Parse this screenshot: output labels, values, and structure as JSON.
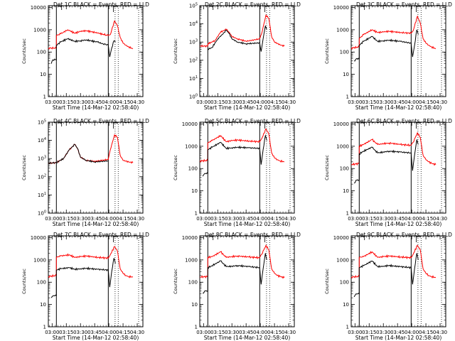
{
  "figure": {
    "xlabel": "Start Time (14-Mar-12 02:58:40)",
    "ylabel": "Counts/sec",
    "x_ticks": [
      "03:00",
      "03:15",
      "03:30",
      "03:45",
      "04:00",
      "04:15",
      "04:30"
    ]
  },
  "chart_data": [
    {
      "type": "line",
      "title": "Det 1C BLACK = Events, RED = LLD",
      "xlabel": "Start Time (14-Mar-12 02:58:40)",
      "ylabel": "Counts/sec",
      "x_range_minutes_after_0300": [
        -1.33,
        32
      ],
      "y_scale": "log",
      "y_ticks": [
        "1",
        "10",
        "100",
        "1000",
        "10000"
      ],
      "ylim": [
        1,
        12000
      ],
      "series": [
        {
          "name": "LLD",
          "color": "#ff0000",
          "x": [
            -1.3,
            1.5,
            1.5,
            3,
            5.5,
            8,
            10,
            12,
            16,
            18,
            19.8,
            20.5,
            22,
            23,
            24,
            25,
            26,
            27,
            28.5
          ],
          "y": [
            150,
            150,
            550,
            650,
            1000,
            700,
            850,
            900,
            720,
            620,
            550,
            600,
            2500,
            1500,
            450,
            250,
            200,
            170,
            140
          ]
        },
        {
          "name": "Events",
          "color": "#000000",
          "x": [
            -0.3,
            0.3,
            1.5,
            1.5,
            3,
            5.5,
            8,
            10,
            12,
            16,
            18,
            19.8,
            20.3,
            21,
            21.8,
            22.3
          ],
          "y": [
            30,
            45,
            45,
            200,
            280,
            400,
            300,
            320,
            350,
            280,
            230,
            210,
            60,
            150,
            320,
            280
          ]
        }
      ]
    },
    {
      "type": "line",
      "title": "Det 2C BLACK = Events, RED = LLD",
      "xlabel": "Start Time (14-Mar-12 02:58:40)",
      "ylabel": "Counts/sec",
      "x_range_minutes_after_0300": [
        -1.33,
        32
      ],
      "y_scale": "log",
      "y_ticks": [
        "10^0",
        "10^1",
        "10^2",
        "10^3",
        "10^4",
        "10^5"
      ],
      "ylim": [
        1,
        100000
      ],
      "series": [
        {
          "name": "LLD",
          "color": "#ff0000",
          "x": [
            -1.3,
            1.5,
            1.5,
            4,
            6,
            8,
            9,
            10,
            12,
            15,
            19.8,
            20.5,
            22,
            23,
            24,
            25,
            27,
            28.5
          ],
          "y": [
            600,
            600,
            800,
            1200,
            3500,
            5000,
            3500,
            2000,
            1500,
            1100,
            1500,
            3000,
            30000,
            20000,
            2000,
            1000,
            700,
            600
          ]
        },
        {
          "name": "Events",
          "color": "#000000",
          "x": [
            1.5,
            3,
            5,
            7,
            8,
            9,
            10,
            12,
            15,
            19.8,
            20.3,
            21,
            21.8,
            22.3
          ],
          "y": [
            400,
            500,
            1500,
            3000,
            4500,
            3000,
            1500,
            1000,
            800,
            900,
            300,
            1500,
            8000,
            5000
          ]
        }
      ]
    },
    {
      "type": "line",
      "title": "Det 3C BLACK = Events, RED = LLD",
      "xlabel": "Start Time (14-Mar-12 02:58:40)",
      "ylabel": "Counts/sec",
      "x_range_minutes_after_0300": [
        -1.33,
        32
      ],
      "y_scale": "log",
      "y_ticks": [
        "1",
        "10",
        "100",
        "1000",
        "10000"
      ],
      "ylim": [
        1,
        12000
      ],
      "series": [
        {
          "name": "LLD",
          "color": "#ff0000",
          "x": [
            -1.3,
            1.5,
            1.5,
            3,
            6,
            8,
            10,
            12,
            16,
            19.8,
            20.5,
            22,
            23,
            24,
            25,
            26,
            27,
            28.5
          ],
          "y": [
            150,
            170,
            400,
            600,
            1000,
            750,
            800,
            850,
            750,
            700,
            900,
            4000,
            2000,
            400,
            250,
            200,
            170,
            140
          ]
        },
        {
          "name": "Events",
          "color": "#000000",
          "x": [
            -0.3,
            0.5,
            1.5,
            1.5,
            3,
            6,
            8,
            10,
            12,
            16,
            19.8,
            20.3,
            21,
            21.8,
            22.3
          ],
          "y": [
            40,
            50,
            50,
            200,
            300,
            500,
            300,
            320,
            340,
            300,
            250,
            60,
            200,
            1000,
            600
          ]
        }
      ]
    },
    {
      "type": "line",
      "title": "Det 4C BLACK = Events, RED = LLD",
      "xlabel": "Start Time (14-Mar-12 02:58:40)",
      "ylabel": "Counts/sec",
      "x_range_minutes_after_0300": [
        -1.33,
        32
      ],
      "y_scale": "log",
      "y_ticks": [
        "10^0",
        "10^1",
        "10^2",
        "10^3",
        "10^4",
        "10^5"
      ],
      "ylim": [
        1,
        100000
      ],
      "series": [
        {
          "name": "LLD",
          "color": "#ff0000",
          "x": [
            -1.3,
            1.5,
            4,
            6,
            8,
            9,
            10,
            12,
            15,
            19.8,
            20.5,
            22,
            23,
            24,
            25,
            27,
            28.5
          ],
          "y": [
            550,
            600,
            1000,
            3000,
            6000,
            3500,
            1200,
            800,
            700,
            900,
            3000,
            20000,
            15000,
            1500,
            800,
            650,
            600
          ]
        },
        {
          "name": "Events",
          "color": "#000000",
          "x": [
            -1.3,
            1.5,
            4,
            6,
            8,
            9,
            10,
            12,
            15,
            19.8
          ],
          "y": [
            550,
            600,
            1000,
            3000,
            6000,
            3500,
            1200,
            800,
            650,
            750
          ]
        }
      ]
    },
    {
      "type": "line",
      "title": "Det 5C BLACK = Events, RED = LLD",
      "xlabel": "Start Time (14-Mar-12 02:58:40)",
      "ylabel": "Counts/sec",
      "x_range_minutes_after_0300": [
        -1.33,
        32
      ],
      "y_scale": "log",
      "y_ticks": [
        "1",
        "10",
        "100",
        "1000",
        "10000"
      ],
      "ylim": [
        1,
        12000
      ],
      "series": [
        {
          "name": "LLD",
          "color": "#ff0000",
          "x": [
            -1.3,
            1.5,
            1.5,
            3,
            6,
            8,
            10,
            12,
            16,
            19.8,
            20.5,
            22,
            23,
            24,
            25,
            26,
            27,
            28.5
          ],
          "y": [
            220,
            230,
            1400,
            1800,
            3000,
            1600,
            1800,
            1900,
            1700,
            1600,
            2200,
            6000,
            3500,
            500,
            300,
            250,
            220,
            200
          ]
        },
        {
          "name": "Events",
          "color": "#000000",
          "x": [
            -0.3,
            0.4,
            1.5,
            1.5,
            3,
            6,
            8,
            10,
            12,
            16,
            19.8,
            20.3,
            21,
            21.8,
            22.3
          ],
          "y": [
            45,
            60,
            60,
            700,
            900,
            1500,
            800,
            850,
            900,
            850,
            800,
            150,
            700,
            3000,
            1800
          ]
        }
      ]
    },
    {
      "type": "line",
      "title": "Det 6C BLACK = Events, RED = LLD",
      "xlabel": "Start Time (14-Mar-12 02:58:40)",
      "ylabel": "Counts/sec",
      "x_range_minutes_after_0300": [
        -1.33,
        32
      ],
      "y_scale": "log",
      "y_ticks": [
        "1",
        "10",
        "100",
        "1000",
        "10000"
      ],
      "ylim": [
        1,
        12000
      ],
      "series": [
        {
          "name": "LLD",
          "color": "#ff0000",
          "x": [
            -1.3,
            1.5,
            1.5,
            3,
            6,
            8,
            10,
            12,
            16,
            19.8,
            20.5,
            22,
            23,
            24,
            25,
            26,
            27,
            28.5
          ],
          "y": [
            150,
            170,
            1000,
            1200,
            2000,
            1200,
            1300,
            1400,
            1200,
            1100,
            1500,
            4000,
            2500,
            400,
            250,
            200,
            170,
            150
          ]
        },
        {
          "name": "Events",
          "color": "#000000",
          "x": [
            -0.3,
            0.4,
            1.5,
            1.5,
            3,
            6,
            8,
            10,
            12,
            16,
            19.8,
            20.3,
            21,
            21.8,
            22.3
          ],
          "y": [
            22,
            30,
            30,
            450,
            600,
            900,
            500,
            550,
            600,
            550,
            500,
            80,
            400,
            2000,
            1200
          ]
        }
      ]
    },
    {
      "type": "line",
      "title": "Det 7C BLACK = Events, RED = LLD",
      "xlabel": "Start Time (14-Mar-12 02:58:40)",
      "ylabel": "Counts/sec",
      "x_range_minutes_after_0300": [
        -1.33,
        32
      ],
      "y_scale": "log",
      "y_ticks": [
        "1",
        "10",
        "100",
        "1000",
        "10000"
      ],
      "ylim": [
        1,
        12000
      ],
      "series": [
        {
          "name": "LLD",
          "color": "#ff0000",
          "x": [
            -1.3,
            1.5,
            1.5,
            3,
            6,
            8,
            10,
            12,
            16,
            19.8,
            20.5,
            22,
            23,
            24,
            25,
            26,
            27,
            28.5
          ],
          "y": [
            180,
            200,
            1300,
            1500,
            1700,
            1300,
            1400,
            1500,
            1300,
            1200,
            1700,
            4000,
            2500,
            400,
            250,
            200,
            180,
            170
          ]
        },
        {
          "name": "Events",
          "color": "#000000",
          "x": [
            -0.3,
            0.4,
            1.5,
            1.5,
            3,
            6,
            8,
            10,
            12,
            16,
            19.8,
            20.3,
            21,
            21.8,
            22.3
          ],
          "y": [
            20,
            25,
            25,
            350,
            400,
            450,
            380,
            400,
            420,
            380,
            350,
            60,
            300,
            1200,
            700
          ]
        }
      ]
    },
    {
      "type": "line",
      "title": "Det 8C BLACK = Events, RED = LLD",
      "xlabel": "Start Time (14-Mar-12 02:58:40)",
      "ylabel": "Counts/sec",
      "x_range_minutes_after_0300": [
        -1.33,
        32
      ],
      "y_scale": "log",
      "y_ticks": [
        "1",
        "10",
        "100",
        "1000",
        "10000"
      ],
      "ylim": [
        1,
        12000
      ],
      "series": [
        {
          "name": "LLD",
          "color": "#ff0000",
          "x": [
            -1.3,
            1.5,
            1.5,
            3,
            6,
            8,
            10,
            12,
            16,
            19.8,
            20.5,
            22,
            23,
            24,
            25,
            26,
            27,
            28.5
          ],
          "y": [
            170,
            180,
            1300,
            1400,
            2300,
            1300,
            1400,
            1500,
            1350,
            1250,
            1800,
            4500,
            2800,
            400,
            250,
            200,
            180,
            160
          ]
        },
        {
          "name": "Events",
          "color": "#000000",
          "x": [
            -0.3,
            0.4,
            1.5,
            1.5,
            3,
            6,
            8,
            10,
            12,
            16,
            19.8,
            20.3,
            21,
            21.8,
            22.3
          ],
          "y": [
            32,
            40,
            40,
            450,
            550,
            900,
            500,
            520,
            560,
            500,
            450,
            80,
            400,
            2000,
            1000
          ]
        }
      ]
    },
    {
      "type": "line",
      "title": "Det 9C BLACK = Events, RED = LLD",
      "xlabel": "Start Time (14-Mar-12 02:58:40)",
      "ylabel": "Counts/sec",
      "x_range_minutes_after_0300": [
        -1.33,
        32
      ],
      "y_scale": "log",
      "y_ticks": [
        "1",
        "10",
        "100",
        "1000",
        "10000"
      ],
      "ylim": [
        1,
        12000
      ],
      "series": [
        {
          "name": "LLD",
          "color": "#ff0000",
          "x": [
            -1.3,
            1.5,
            1.5,
            3,
            6,
            8,
            10,
            12,
            16,
            19.8,
            20.5,
            22,
            23,
            24,
            25,
            26,
            27,
            28.5
          ],
          "y": [
            170,
            180,
            1300,
            1400,
            2300,
            1300,
            1400,
            1500,
            1350,
            1250,
            1800,
            4500,
            2800,
            400,
            250,
            200,
            180,
            160
          ]
        },
        {
          "name": "Events",
          "color": "#000000",
          "x": [
            -0.3,
            0.4,
            1.5,
            1.5,
            3,
            6,
            8,
            10,
            12,
            16,
            19.8,
            20.3,
            21,
            21.8,
            22.3
          ],
          "y": [
            22,
            30,
            30,
            450,
            550,
            900,
            500,
            520,
            560,
            500,
            450,
            80,
            400,
            2000,
            1000
          ]
        }
      ]
    }
  ]
}
